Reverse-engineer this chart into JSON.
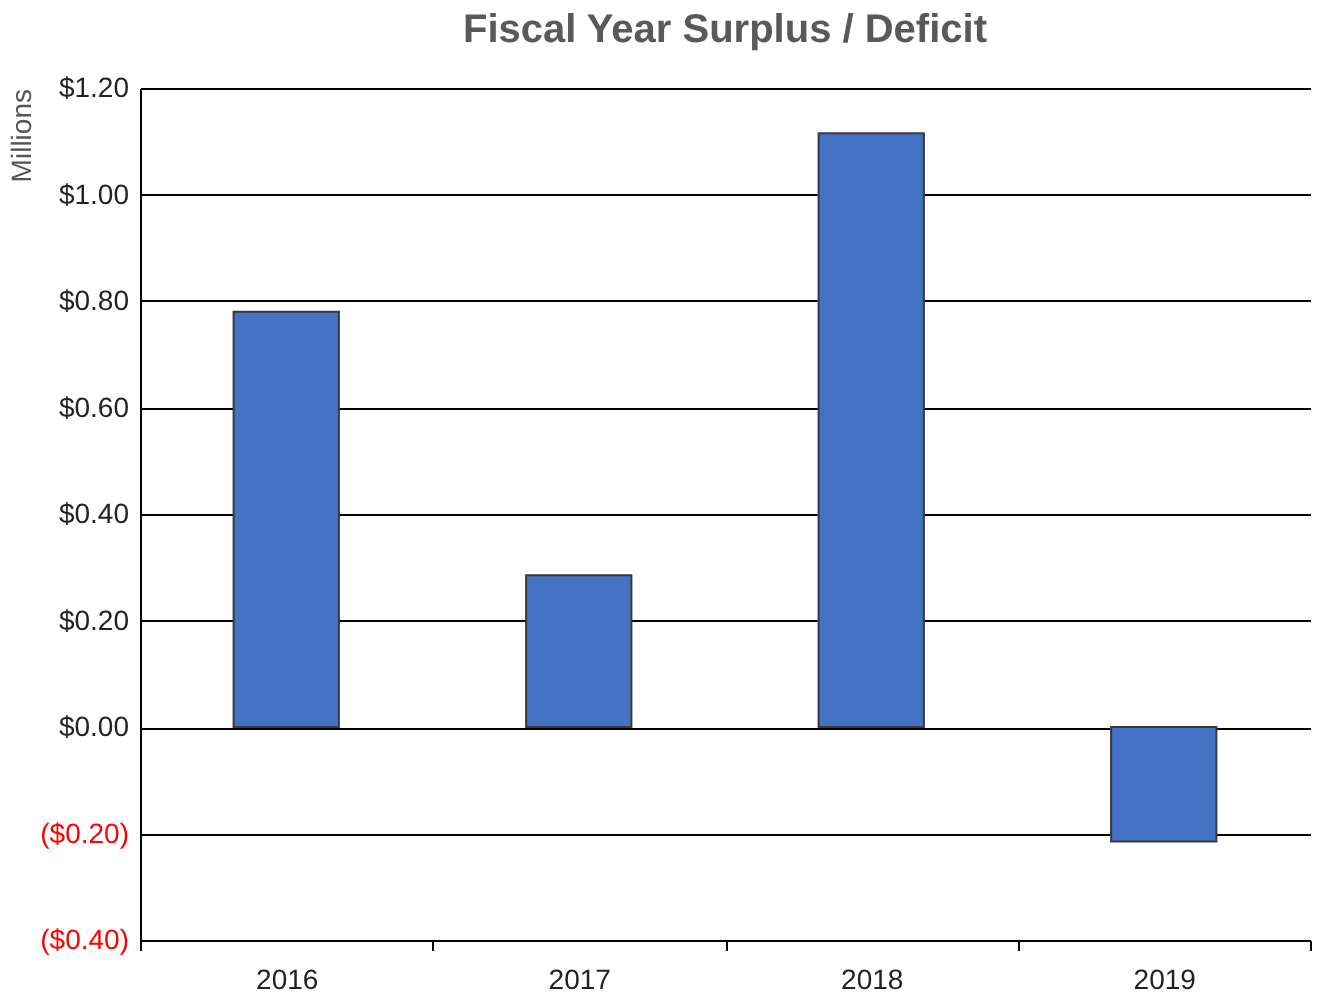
{
  "chart_data": {
    "type": "bar",
    "title": "Fiscal Year Surplus / Deficit",
    "ylabel": "Millions",
    "categories": [
      "2016",
      "2017",
      "2018",
      "2019"
    ],
    "values": [
      0.78,
      0.285,
      1.115,
      -0.215
    ],
    "color": "#4472c4",
    "ylim": [
      -0.4,
      1.2
    ],
    "yticks": [
      {
        "value": -0.4,
        "label": "($0.40)"
      },
      {
        "value": -0.2,
        "label": "($0.20)"
      },
      {
        "value": 0,
        "label": "$0.00"
      },
      {
        "value": 0.2,
        "label": "$0.20"
      },
      {
        "value": 0.4,
        "label": "$0.40"
      },
      {
        "value": 0.6,
        "label": "$0.60"
      },
      {
        "value": 0.8,
        "label": "$0.80"
      },
      {
        "value": 1.0,
        "label": "$1.00"
      },
      {
        "value": 1.2,
        "label": "$1.20"
      }
    ],
    "grid": "y"
  }
}
